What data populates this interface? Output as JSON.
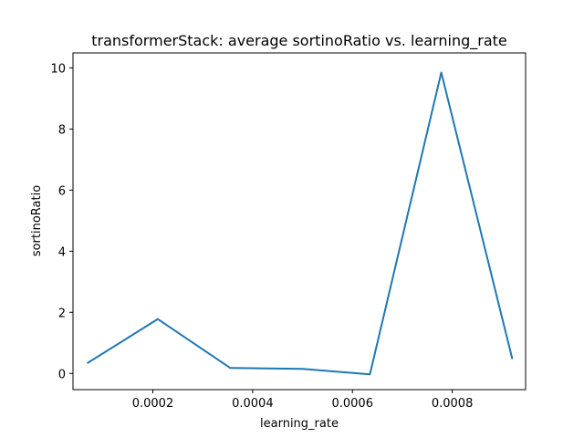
{
  "chart_data": {
    "type": "line",
    "title": "transformerStack: average sortinoRatio vs. learning_rate",
    "xlabel": "learning_rate",
    "ylabel": "sortinoRatio",
    "xlim": [
      4e-05,
      0.000947
    ],
    "ylim": [
      -0.53,
      10.49
    ],
    "xticks": [
      0.0002,
      0.0004,
      0.0006,
      0.0008
    ],
    "xtick_labels": [
      "0.0002",
      "0.0004",
      "0.0006",
      "0.0008"
    ],
    "yticks": [
      0,
      2,
      4,
      6,
      8,
      10
    ],
    "ytick_labels": [
      "0",
      "2",
      "4",
      "6",
      "8",
      "10"
    ],
    "grid": false,
    "legend": "none",
    "series": [
      {
        "color": "#1f77b4",
        "x": [
          7e-05,
          0.00021,
          0.000355,
          0.0005,
          0.000635,
          0.000778,
          0.00092
        ],
        "y": [
          0.35,
          1.78,
          0.18,
          0.15,
          -0.03,
          9.85,
          0.5
        ]
      }
    ]
  }
}
